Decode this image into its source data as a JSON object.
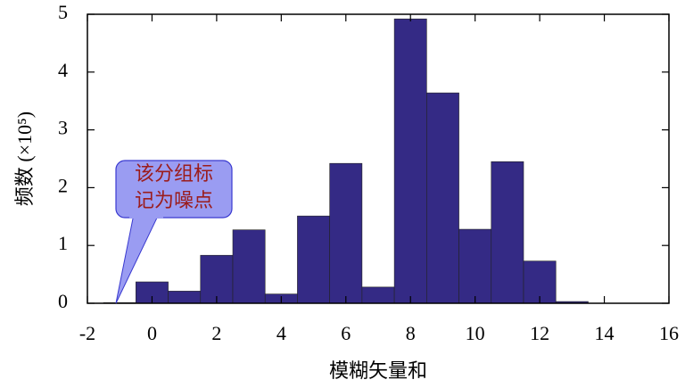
{
  "chart_data": {
    "type": "histogram",
    "xlabel": "模糊矢量和",
    "ylabel": "频数 (×10⁵)",
    "annotation": [
      "该分组标",
      "记为噪点"
    ],
    "bins": [
      -1.5,
      -0.5,
      0.5,
      1.5,
      2.5,
      3.5,
      4.5,
      5.5,
      6.5,
      7.5,
      8.5,
      9.5,
      10.5,
      11.5,
      12.5,
      13.5
    ],
    "counts": [
      0.01,
      0.37,
      0.21,
      0.83,
      1.27,
      0.16,
      1.51,
      2.42,
      0.28,
      4.92,
      3.64,
      1.28,
      2.45,
      0.73,
      0.03
    ],
    "color": "#342a85",
    "xlim": [
      -2,
      16
    ],
    "xticks": [
      -2,
      0,
      2,
      4,
      6,
      8,
      10,
      12,
      14,
      16
    ],
    "ylim": [
      0,
      5
    ],
    "yticks": [
      0,
      1,
      2,
      3,
      4,
      5
    ]
  }
}
